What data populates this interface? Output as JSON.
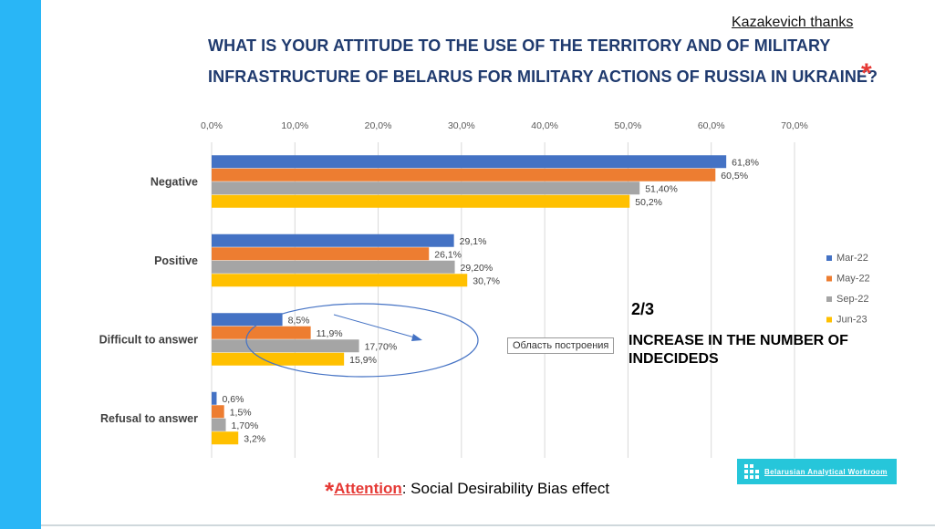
{
  "credit": "Kazakevich thanks",
  "title_line1": "WHAT IS YOUR ATTITUDE TO THE USE OF THE TERRITORY AND  OF  MILITARY",
  "title_line2": "INFRASTRUCTURE OF BELARUS  FOR MILITARY ACTIONS OF RUSSIA IN UKRAINE?",
  "title_star": "*",
  "side_ratio": "2/3",
  "side_note": "INCREASE IN THE NUMBER OF INDECIDEDS",
  "tooltip": "Область построения",
  "footer": {
    "star": "*",
    "attention": "Attention",
    "rest": ": Social Desirability Bias effect"
  },
  "logo_text": "Belarusian Analytical Workroom",
  "colors": {
    "accent_bar": "#29b6f6",
    "title": "#1f3a6e",
    "star": "#e53935"
  },
  "chart_data": {
    "type": "bar",
    "orientation": "horizontal",
    "categories": [
      "Negative",
      "Positive",
      "Difficult to answer",
      "Refusal to answer"
    ],
    "xlim": [
      0,
      70
    ],
    "xticks": [
      "0,0%",
      "10,0%",
      "20,0%",
      "30,0%",
      "40,0%",
      "50,0%",
      "60,0%",
      "70,0%"
    ],
    "grid": true,
    "legend_position": "right",
    "series": [
      {
        "name": "Mar-22",
        "color": "#4472c4",
        "values": [
          61.8,
          29.1,
          8.5,
          0.6
        ],
        "labels": [
          "61,8%",
          "29,1%",
          "8,5%",
          "0,6%"
        ]
      },
      {
        "name": "May-22",
        "color": "#ed7d31",
        "values": [
          60.5,
          26.1,
          11.9,
          1.5
        ],
        "labels": [
          "60,5%",
          "26,1%",
          "11,9%",
          "1,5%"
        ]
      },
      {
        "name": "Sep-22",
        "color": "#a5a5a5",
        "values": [
          51.4,
          29.2,
          17.7,
          1.7
        ],
        "labels": [
          "51,40%",
          "29,20%",
          "17,70%",
          "1,70%"
        ]
      },
      {
        "name": "Jun-23",
        "color": "#ffc000",
        "values": [
          50.2,
          30.7,
          15.9,
          3.2
        ],
        "labels": [
          "50,2%",
          "30,7%",
          "15,9%",
          "3,2%"
        ]
      }
    ]
  }
}
